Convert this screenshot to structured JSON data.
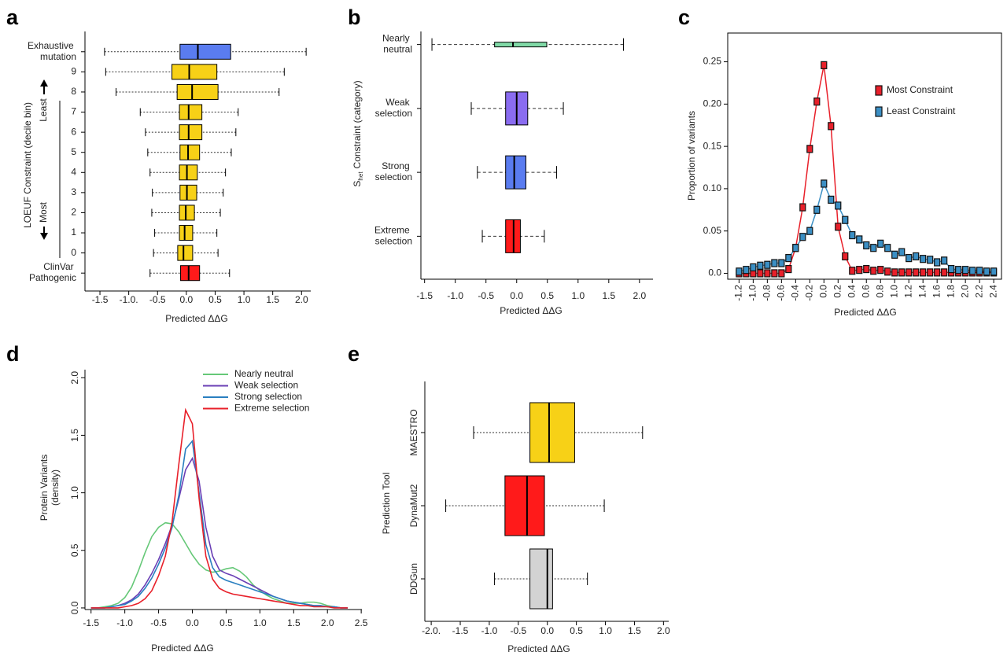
{
  "chart_data": [
    {
      "type": "boxplot",
      "panel": "a",
      "categories": [
        "Exhaustive mutation",
        "9",
        "8",
        "7",
        "6",
        "5",
        "4",
        "3",
        "2",
        "1",
        "0",
        "ClinVar Pathogenic"
      ],
      "min": [
        -1.42,
        -1.4,
        -1.22,
        -0.8,
        -0.71,
        -0.67,
        -0.63,
        -0.59,
        -0.6,
        -0.55,
        -0.57,
        -0.63
      ],
      "q1": [
        -0.11,
        -0.25,
        -0.16,
        -0.12,
        -0.12,
        -0.11,
        -0.12,
        -0.11,
        -0.12,
        -0.12,
        -0.15,
        -0.1
      ],
      "median": [
        0.2,
        0.05,
        0.1,
        0.04,
        0.04,
        0.03,
        0.01,
        0.01,
        -0.01,
        -0.03,
        -0.05,
        0.04
      ],
      "q3": [
        0.77,
        0.53,
        0.55,
        0.27,
        0.27,
        0.23,
        0.19,
        0.18,
        0.14,
        0.11,
        0.11,
        0.23
      ],
      "max": [
        2.08,
        1.7,
        1.61,
        0.9,
        0.86,
        0.78,
        0.68,
        0.64,
        0.59,
        0.53,
        0.55,
        0.75
      ],
      "colors": [
        "#5a7cf0",
        "#f7d117",
        "#f7d117",
        "#f7d117",
        "#f7d117",
        "#f7d117",
        "#f7d117",
        "#f7d117",
        "#f7d117",
        "#f7d117",
        "#f7d117",
        "#ff1a1a"
      ],
      "xlim": [
        -1.76,
        2.16
      ],
      "xticks": [
        -1.5,
        {
          "value": -1,
          "label": "-1.0."
        },
        -0.5,
        {
          "value": 0,
          "label": "0.0"
        },
        0.5,
        {
          "value": 1,
          "label": "1.0"
        },
        1.5,
        {
          "value": 2,
          "label": "2.0"
        }
      ],
      "xlabel": "Predicted ΔΔG",
      "ylabel": "LOEUF Constraint (decile bin)",
      "annotations": [
        "Least",
        "Most"
      ]
    },
    {
      "type": "boxplot",
      "panel": "b",
      "categories": [
        "Nearly neutral",
        "Weak selection",
        "Strong selection",
        "Extreme selection"
      ],
      "min": [
        -1.38,
        -0.74,
        -0.64,
        -0.56
      ],
      "q1": [
        -0.36,
        -0.18,
        -0.18,
        -0.18
      ],
      "median": [
        -0.06,
        0,
        -0.04,
        -0.05
      ],
      "q3": [
        0.49,
        0.18,
        0.15,
        0.06
      ],
      "max": [
        1.74,
        0.76,
        0.65,
        0.45
      ],
      "colors": [
        "#80d9a6",
        "#8a6cf0",
        "#5a7cf0",
        "#ff1a1a"
      ],
      "xlim": [
        -1.56,
        2.22
      ],
      "xticks": [
        -1.5,
        {
          "value": -1,
          "label": "-1.0"
        },
        -0.5,
        {
          "value": 0,
          "label": "0.0"
        },
        0.5,
        {
          "value": 1,
          "label": "1.0"
        },
        1.5,
        {
          "value": 2,
          "label": "2.0"
        }
      ],
      "xlabel": "Predicted ΔΔG",
      "ylabel": {
        "symbol": "S",
        "subscript": "het",
        "text": "Constraint (category)"
      }
    },
    {
      "type": "line",
      "panel": "c",
      "markers": true,
      "legend": "upper right",
      "x": [
        -1.2,
        -1.1,
        -1,
        -0.9,
        -0.8,
        -0.7,
        -0.6,
        -0.5,
        -0.4,
        -0.3,
        -0.2,
        -0.1,
        0,
        0.1,
        0.2,
        0.3,
        0.4,
        0.5,
        0.6,
        0.7,
        0.8,
        0.9,
        1,
        1.1,
        1.2,
        1.3,
        1.4,
        1.5,
        1.6,
        1.7,
        1.8,
        1.9,
        2,
        2.1,
        2.2,
        2.3,
        2.4
      ],
      "series": [
        {
          "name": "Most Constraint",
          "color": "#e8202a",
          "values": [
            0,
            0,
            0,
            0,
            0,
            0,
            0,
            0.005,
            0.03,
            0.078,
            0.147,
            0.203,
            0.246,
            0.174,
            0.055,
            0.02,
            0.003,
            0.004,
            0.005,
            0.003,
            0.004,
            0.002,
            0.001,
            0.001,
            0.001,
            0.001,
            0.001,
            0.001,
            0.001,
            0.001,
            0.001,
            0.001,
            0.001,
            0.001,
            0.001,
            0.001,
            0.001
          ]
        },
        {
          "name": "Least Constraint",
          "color": "#3b8fc4",
          "values": [
            0.002,
            0.004,
            0.007,
            0.009,
            0.01,
            0.012,
            0.012,
            0.018,
            0.03,
            0.043,
            0.05,
            0.075,
            0.106,
            0.087,
            0.08,
            0.063,
            0.045,
            0.04,
            0.033,
            0.03,
            0.035,
            0.03,
            0.022,
            0.025,
            0.018,
            0.02,
            0.017,
            0.016,
            0.013,
            0.015,
            0.005,
            0.004,
            0.004,
            0.003,
            0.003,
            0.002,
            0.002
          ]
        }
      ],
      "xlim": [
        -1.36,
        2.51
      ],
      "ylim": [
        -0.007,
        0.284
      ],
      "xticks": [
        -1.2,
        {
          "value": -1,
          "label": "-1.0"
        },
        -0.8,
        -0.6,
        -0.4,
        -0.2,
        {
          "value": 0,
          "label": "0.0"
        },
        0.2,
        0.4,
        0.6,
        0.8,
        {
          "value": 1,
          "label": "1.0"
        },
        1.2,
        1.4,
        1.6,
        1.8,
        {
          "value": 2,
          "label": "2.0"
        },
        2.2,
        2.4
      ],
      "yticks": [
        {
          "value": 0,
          "label": "0.0"
        },
        0.05,
        {
          "value": 0.1,
          "label": "0.10"
        },
        0.15,
        {
          "value": 0.2,
          "label": "0.20"
        },
        0.25
      ],
      "xlabel": "Predicted ΔΔG",
      "ylabel": "Proportion of variants"
    },
    {
      "type": "line",
      "panel": "d",
      "markers": false,
      "legend": "upper right",
      "x": [
        -1.5,
        -1.4,
        -1.3,
        -1.2,
        -1.1,
        -1,
        -0.9,
        -0.8,
        -0.7,
        -0.6,
        -0.5,
        -0.4,
        -0.3,
        -0.2,
        -0.1,
        0,
        0.1,
        0.2,
        0.3,
        0.4,
        0.5,
        0.6,
        0.7,
        0.8,
        0.9,
        1,
        1.1,
        1.2,
        1.3,
        1.4,
        1.5,
        1.6,
        1.7,
        1.8,
        1.9,
        2,
        2.1,
        2.2,
        2.3
      ],
      "series": [
        {
          "name": "Nearly neutral",
          "color": "#66c878",
          "values": [
            0,
            0,
            0.01,
            0.02,
            0.04,
            0.09,
            0.18,
            0.32,
            0.48,
            0.62,
            0.7,
            0.74,
            0.73,
            0.66,
            0.56,
            0.46,
            0.38,
            0.33,
            0.31,
            0.32,
            0.34,
            0.35,
            0.32,
            0.27,
            0.2,
            0.15,
            0.11,
            0.08,
            0.06,
            0.04,
            0.04,
            0.04,
            0.05,
            0.05,
            0.04,
            0.02,
            0.01,
            0,
            0
          ]
        },
        {
          "name": "Weak selection",
          "color": "#6a3fb5",
          "values": [
            0,
            0,
            0,
            0.01,
            0.02,
            0.04,
            0.07,
            0.12,
            0.2,
            0.3,
            0.42,
            0.56,
            0.72,
            0.95,
            1.2,
            1.3,
            1.1,
            0.7,
            0.45,
            0.33,
            0.3,
            0.28,
            0.25,
            0.22,
            0.19,
            0.16,
            0.13,
            0.1,
            0.08,
            0.06,
            0.05,
            0.04,
            0.03,
            0.02,
            0.02,
            0.01,
            0.01,
            0,
            0
          ]
        },
        {
          "name": "Strong selection",
          "color": "#2a7fc0",
          "values": [
            0,
            0,
            0,
            0.01,
            0.02,
            0.03,
            0.06,
            0.1,
            0.17,
            0.26,
            0.38,
            0.52,
            0.7,
            0.98,
            1.38,
            1.45,
            1,
            0.55,
            0.35,
            0.27,
            0.24,
            0.22,
            0.2,
            0.18,
            0.16,
            0.14,
            0.12,
            0.1,
            0.08,
            0.06,
            0.05,
            0.04,
            0.03,
            0.02,
            0.02,
            0.01,
            0.01,
            0,
            0
          ]
        },
        {
          "name": "Extreme selection",
          "color": "#e8202a",
          "values": [
            0,
            0,
            0,
            0,
            0,
            0.01,
            0.02,
            0.04,
            0.08,
            0.15,
            0.28,
            0.45,
            0.75,
            1.25,
            1.72,
            1.6,
            0.95,
            0.45,
            0.25,
            0.17,
            0.14,
            0.12,
            0.11,
            0.1,
            0.09,
            0.08,
            0.07,
            0.06,
            0.05,
            0.04,
            0.03,
            0.02,
            0.02,
            0.01,
            0.01,
            0.01,
            0,
            0,
            0
          ]
        }
      ],
      "xlim": [
        -1.59,
        2.51
      ],
      "ylim": [
        -0.014,
        2.07
      ],
      "xticks": [
        -1.5,
        {
          "value": -1,
          "label": "-1.0"
        },
        -0.5,
        {
          "value": 0,
          "label": "0.0"
        },
        0.5,
        {
          "value": 1,
          "label": "1.0"
        },
        1.5,
        {
          "value": 2,
          "label": "2.0"
        },
        2.5
      ],
      "yticks": [
        {
          "value": 0,
          "label": "0.0"
        },
        0.5,
        {
          "value": 1,
          "label": "1.0"
        },
        1.5,
        {
          "value": 2,
          "label": "2.0"
        }
      ],
      "xlabel": "Predicted ΔΔG",
      "ylabel": [
        "Protein Variants",
        "(density)"
      ]
    },
    {
      "type": "boxplot",
      "panel": "e",
      "categories": [
        "MAESTRO",
        "DynaMut2",
        "DDGun"
      ],
      "min": [
        -1.27,
        -1.75,
        -0.91
      ],
      "q1": [
        -0.3,
        -0.73,
        -0.3
      ],
      "median": [
        0.03,
        -0.35,
        0
      ],
      "q3": [
        0.47,
        -0.05,
        0.09
      ],
      "max": [
        1.64,
        0.98,
        0.69
      ],
      "colors": [
        "#f7d117",
        "#ff1a1a",
        "#d3d3d3"
      ],
      "xlim": [
        -2.11,
        2.09
      ],
      "xticks": [
        {
          "value": -2,
          "label": "-2.0."
        },
        -1.5,
        {
          "value": -1,
          "label": "-1.0"
        },
        -0.5,
        {
          "value": 0,
          "label": "0.0"
        },
        0.5,
        {
          "value": 1,
          "label": "1.0"
        },
        1.5,
        {
          "value": 2,
          "label": "2.0"
        }
      ],
      "xlabel": "Predicted ΔΔG",
      "ylabel": "Prediction Tool"
    }
  ]
}
